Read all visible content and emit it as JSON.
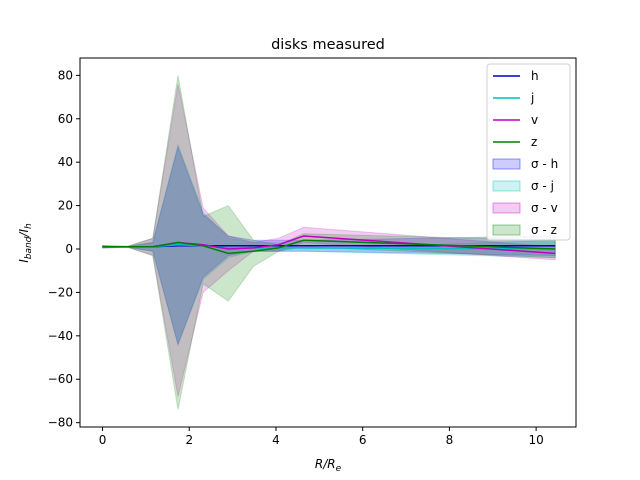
{
  "chart_data": {
    "type": "line",
    "title": "disks measured",
    "xlabel": "R/R",
    "xlabel_sub": "e",
    "ylabel": "I",
    "ylabel_sub1": "band",
    "ylabel_mid": "/I",
    "ylabel_sub2": "h",
    "xlim": [
      -0.52,
      10.92
    ],
    "ylim": [
      -82,
      88
    ],
    "xticks": [
      0,
      2,
      4,
      6,
      8,
      10
    ],
    "yticks": [
      -80,
      -60,
      -40,
      -20,
      0,
      20,
      40,
      60,
      80
    ],
    "grid": false,
    "legend_placement": "top-right",
    "x": [
      0,
      0.58,
      1.16,
      1.74,
      2.32,
      2.9,
      3.48,
      4.06,
      4.64,
      10.44
    ],
    "series": [
      {
        "name": "h",
        "color": "#0000cc",
        "values": [
          1,
          1,
          1,
          1.5,
          1.5,
          1.5,
          1.5,
          1.5,
          1.5,
          1.5
        ],
        "lower": [
          0.5,
          0.8,
          -1,
          -44,
          -13,
          -3,
          -1,
          -1,
          -1,
          -3
        ],
        "upper": [
          1.5,
          1.2,
          3,
          47,
          16,
          6,
          4,
          4,
          4,
          6
        ]
      },
      {
        "name": "j",
        "color": "#00bfbf",
        "values": [
          1,
          1,
          1,
          2,
          1.5,
          0.5,
          0.5,
          0.5,
          0.5,
          0
        ],
        "lower": [
          0.5,
          0.8,
          -1,
          -44,
          -14,
          -4,
          -1,
          -1,
          -1,
          -4
        ],
        "upper": [
          1.5,
          1.2,
          3,
          48,
          17,
          5,
          3,
          3,
          0,
          4
        ]
      },
      {
        "name": "v",
        "color": "#bf00bf",
        "values": [
          1,
          1,
          1,
          3,
          2,
          0,
          0.5,
          2,
          6,
          -2
        ],
        "lower": [
          0.5,
          0.8,
          -3,
          -68,
          -20,
          -10,
          -1,
          -1,
          3,
          -5
        ],
        "upper": [
          1.5,
          1.2,
          5,
          76,
          19,
          6,
          3,
          5,
          10,
          1
        ]
      },
      {
        "name": "z",
        "color": "#008000",
        "values": [
          1,
          1,
          1,
          3,
          1.5,
          -2,
          -1,
          0.5,
          4,
          0
        ],
        "lower": [
          0.5,
          0.8,
          -3,
          -74,
          -16,
          -24,
          -8,
          -1,
          1,
          -4
        ],
        "upper": [
          1.5,
          1.2,
          5,
          80,
          15,
          20,
          4,
          2,
          7,
          4
        ]
      }
    ],
    "band_color_names": [
      "σ - h",
      "σ - j",
      "σ - v",
      "σ - z"
    ],
    "band_colors": [
      "#0000ff",
      "#00bfbf",
      "#bf00bf",
      "#008000"
    ]
  }
}
